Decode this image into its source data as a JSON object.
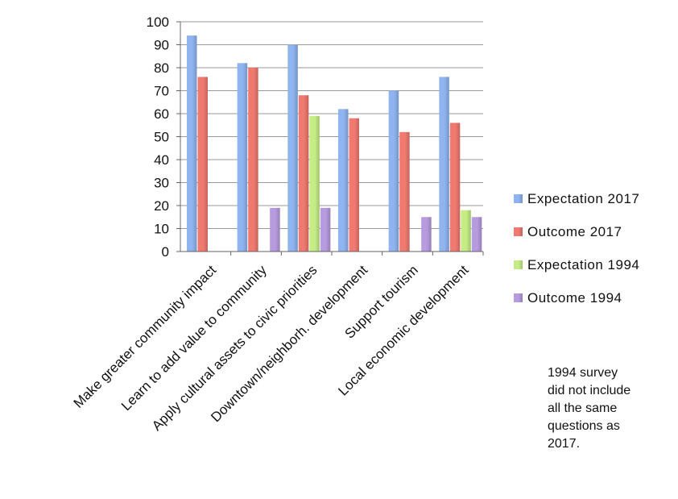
{
  "chart_data": {
    "type": "bar",
    "categories": [
      "Make greater community impact",
      "Learn to add value to community",
      "Apply cultural assets to civic priorities",
      "Downtown/neighborh. development",
      "Support tourism",
      "Local economic development"
    ],
    "series": [
      {
        "name": "Expectation 2017",
        "color": "#8fb4f0",
        "values": [
          94,
          82,
          90,
          62,
          70,
          76
        ]
      },
      {
        "name": "Outcome 2017",
        "color": "#f07a70",
        "values": [
          76,
          80,
          68,
          58,
          52,
          56
        ]
      },
      {
        "name": "Expectation 1994",
        "color": "#c6ec86",
        "values": [
          null,
          null,
          59,
          null,
          null,
          18
        ]
      },
      {
        "name": "Outcome 1994",
        "color": "#b79bdf",
        "values": [
          null,
          19,
          19,
          null,
          15,
          15
        ]
      }
    ],
    "yticks": [
      "0",
      "10",
      "20",
      "30",
      "40",
      "50",
      "60",
      "70",
      "80",
      "90",
      "100"
    ],
    "ylim": [
      0,
      100
    ],
    "grid": true,
    "legend": "right"
  },
  "note_lines": [
    "1994 survey",
    "did not include",
    "all the same",
    "questions as",
    "2017."
  ]
}
